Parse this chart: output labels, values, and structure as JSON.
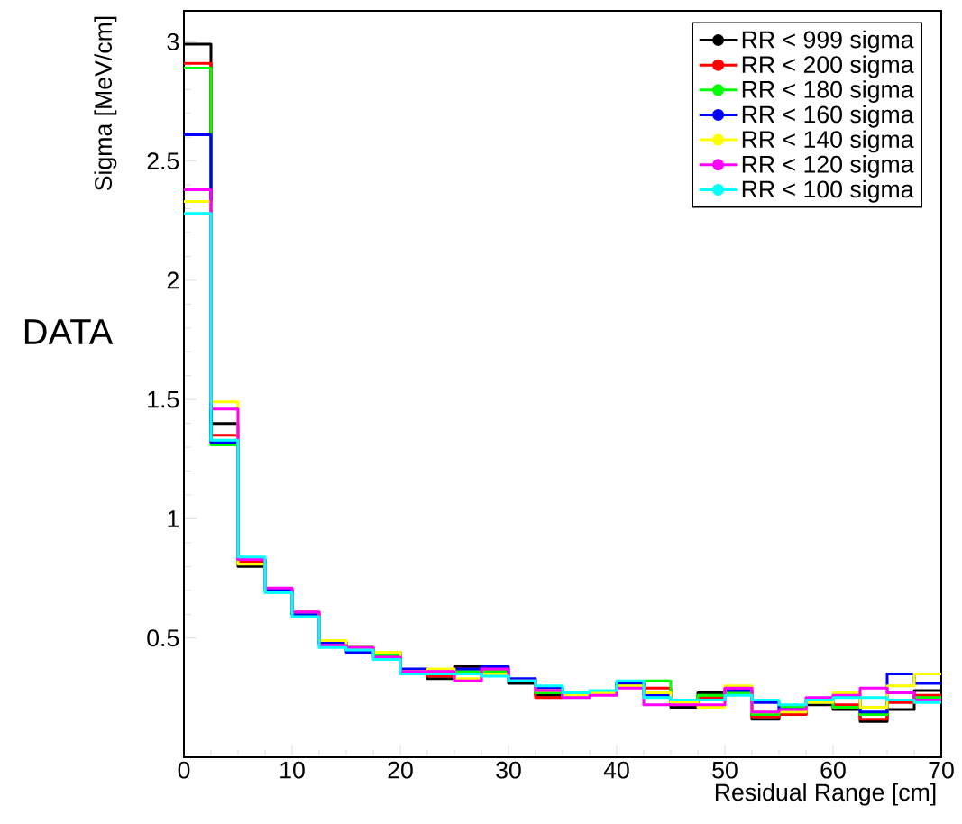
{
  "chart_data": {
    "type": "histogram",
    "xlabel": "Residual Range [cm]",
    "ylabel": "Sigma [MeV/cm]",
    "annotations": [
      "DATA"
    ],
    "bins": [
      0,
      2.5,
      5,
      7.5,
      10,
      12.5,
      15,
      17.5,
      20,
      22.5,
      25,
      27.5,
      30,
      32.5,
      35,
      37.5,
      40,
      42.5,
      45,
      47.5,
      50,
      52.5,
      55,
      57.5,
      60,
      62.5,
      65,
      67.5,
      70
    ],
    "xlim": [
      0,
      70
    ],
    "xticks": [
      0,
      10,
      20,
      30,
      40,
      50,
      60,
      70
    ],
    "ylim": [
      0,
      3.13
    ],
    "yticks": [
      0.5,
      1,
      1.5,
      2,
      2.5,
      3
    ],
    "legend": "top right",
    "grid": false,
    "series": [
      {
        "name": "RR < 999 sigma",
        "color": "#000000",
        "values": [
          2.99,
          1.4,
          0.8,
          0.7,
          0.6,
          0.48,
          0.46,
          0.43,
          0.36,
          0.33,
          0.38,
          0.35,
          0.31,
          0.26,
          0.26,
          0.27,
          0.31,
          0.27,
          0.21,
          0.27,
          0.28,
          0.16,
          0.18,
          0.22,
          0.2,
          0.15,
          0.2,
          0.28
        ]
      },
      {
        "name": "RR < 200 sigma",
        "color": "#ff0000",
        "values": [
          2.91,
          1.35,
          0.82,
          0.7,
          0.61,
          0.48,
          0.46,
          0.43,
          0.36,
          0.34,
          0.37,
          0.36,
          0.32,
          0.25,
          0.26,
          0.27,
          0.31,
          0.29,
          0.23,
          0.25,
          0.29,
          0.17,
          0.18,
          0.23,
          0.22,
          0.16,
          0.23,
          0.26
        ]
      },
      {
        "name": "RR < 180 sigma",
        "color": "#00ff00",
        "values": [
          2.89,
          1.31,
          0.83,
          0.7,
          0.6,
          0.48,
          0.46,
          0.43,
          0.36,
          0.35,
          0.36,
          0.36,
          0.32,
          0.27,
          0.26,
          0.27,
          0.31,
          0.32,
          0.23,
          0.26,
          0.27,
          0.18,
          0.21,
          0.23,
          0.21,
          0.18,
          0.24,
          0.25
        ]
      },
      {
        "name": "RR < 160 sigma",
        "color": "#0000ff",
        "values": [
          2.61,
          1.32,
          0.83,
          0.7,
          0.6,
          0.48,
          0.44,
          0.44,
          0.37,
          0.36,
          0.37,
          0.38,
          0.33,
          0.29,
          0.26,
          0.27,
          0.31,
          0.26,
          0.24,
          0.24,
          0.28,
          0.23,
          0.2,
          0.23,
          0.26,
          0.19,
          0.35,
          0.31
        ]
      },
      {
        "name": "RR < 140 sigma",
        "color": "#ffff00",
        "values": [
          2.33,
          1.49,
          0.81,
          0.69,
          0.61,
          0.49,
          0.46,
          0.44,
          0.36,
          0.37,
          0.33,
          0.35,
          0.32,
          0.28,
          0.26,
          0.27,
          0.3,
          0.27,
          0.23,
          0.21,
          0.3,
          0.19,
          0.19,
          0.23,
          0.27,
          0.21,
          0.3,
          0.35
        ]
      },
      {
        "name": "RR < 120 sigma",
        "color": "#ff00ff",
        "values": [
          2.38,
          1.46,
          0.83,
          0.71,
          0.61,
          0.47,
          0.46,
          0.42,
          0.36,
          0.36,
          0.32,
          0.37,
          0.32,
          0.28,
          0.25,
          0.26,
          0.29,
          0.22,
          0.22,
          0.22,
          0.29,
          0.19,
          0.2,
          0.25,
          0.26,
          0.29,
          0.27,
          0.24
        ]
      },
      {
        "name": "RR < 100 sigma",
        "color": "#00ffff",
        "values": [
          2.28,
          1.33,
          0.84,
          0.69,
          0.59,
          0.46,
          0.45,
          0.41,
          0.35,
          0.35,
          0.35,
          0.34,
          0.32,
          0.3,
          0.27,
          0.28,
          0.32,
          0.25,
          0.24,
          0.24,
          0.26,
          0.24,
          0.22,
          0.24,
          0.25,
          0.25,
          0.24,
          0.23
        ]
      }
    ]
  }
}
